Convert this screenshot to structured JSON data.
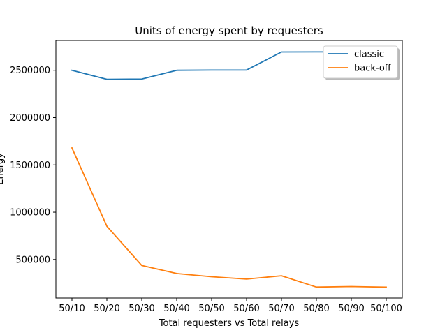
{
  "chart_data": {
    "type": "line",
    "title": "Units of energy spent by requesters",
    "xlabel": "Total requesters vs Total relays",
    "ylabel": "Energy",
    "categories": [
      "50/10",
      "50/20",
      "50/30",
      "50/40",
      "50/50",
      "50/60",
      "50/70",
      "50/80",
      "50/90",
      "50/100"
    ],
    "series": [
      {
        "name": "classic",
        "color": "#1f77b4",
        "values": [
          2500000,
          2405000,
          2407000,
          2500000,
          2502000,
          2503000,
          2693000,
          2694000,
          2694000,
          2694000
        ]
      },
      {
        "name": "back-off",
        "color": "#ff7f0e",
        "values": [
          1680000,
          852000,
          437000,
          352000,
          318000,
          293000,
          328000,
          209000,
          215000,
          208000
        ]
      }
    ],
    "ylim": [
      93000,
      2815000
    ],
    "yticks": [
      500000,
      1000000,
      1500000,
      2000000,
      2500000
    ],
    "ytick_labels": [
      "500000",
      "1000000",
      "1500000",
      "2000000",
      "2500000"
    ],
    "legend_position": "top-right",
    "grid": false
  }
}
